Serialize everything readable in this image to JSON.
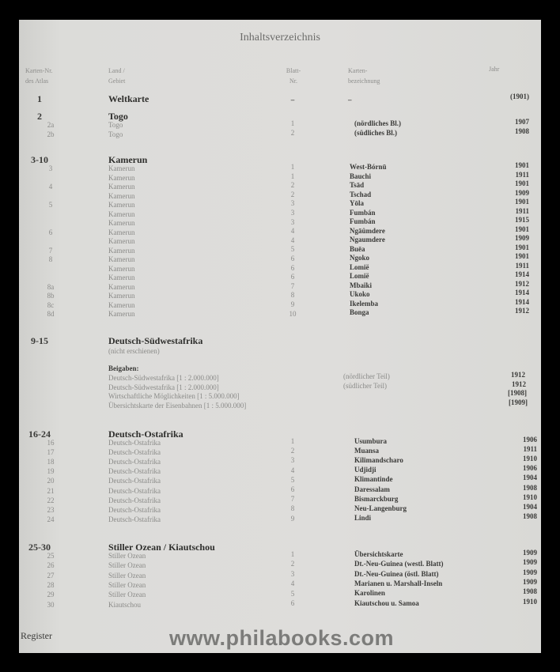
{
  "title": "Inhaltsverzeichnis",
  "headers": {
    "karten_nr": [
      "Karten-Nr.",
      "des Atlas"
    ],
    "land": [
      "Land /",
      "Gebiet"
    ],
    "blatt": [
      "Blatt-",
      "Nr."
    ],
    "bezeichnung": [
      "Karten-",
      "bezeichnung"
    ],
    "jahr": "Jahr"
  },
  "sections": [
    {
      "number": "1",
      "title": "Weltkarte",
      "blatt": "–",
      "bez": "–",
      "jahr": "(1901)",
      "rows": []
    },
    {
      "number": "2",
      "title": "Togo",
      "rows": [
        {
          "num": "2a",
          "land": "Togo",
          "blatt": "1",
          "bez": "(nördliches Bl.)",
          "jahr": "1907"
        },
        {
          "num": "2b",
          "land": "Togo",
          "blatt": "2",
          "bez": "(südliches Bl.)",
          "jahr": "1908"
        }
      ]
    },
    {
      "number": "3-10",
      "title": "Kamerun",
      "rows": [
        {
          "num": "3",
          "land": "Kamerun",
          "blatt": "1",
          "bez": "West-Bórnū",
          "jahr": "1901"
        },
        {
          "num": "",
          "land": "Kamerun",
          "blatt": "1",
          "bez": "Bauchi",
          "jahr": "1911"
        },
        {
          "num": "4",
          "land": "Kamerun",
          "blatt": "2",
          "bez": "Tsād",
          "jahr": "1901"
        },
        {
          "num": "",
          "land": "Kamerun",
          "blatt": "2",
          "bez": "Tschad",
          "jahr": "1909"
        },
        {
          "num": "5",
          "land": "Kamerun",
          "blatt": "3",
          "bez": "Yōla",
          "jahr": "1901"
        },
        {
          "num": "",
          "land": "Kamerun",
          "blatt": "3",
          "bez": "Fumbán",
          "jahr": "1911"
        },
        {
          "num": "",
          "land": "Kamerun",
          "blatt": "3",
          "bez": "Fumbán",
          "jahr": "1915"
        },
        {
          "num": "6",
          "land": "Kamerun",
          "blatt": "4",
          "bez": "Ngāûmdere",
          "jahr": "1901"
        },
        {
          "num": "",
          "land": "Kamerun",
          "blatt": "4",
          "bez": "Ngaumdere",
          "jahr": "1909"
        },
        {
          "num": "7",
          "land": "Kamerun",
          "blatt": "5",
          "bez": "Buēa",
          "jahr": "1901"
        },
        {
          "num": "8",
          "land": "Kamerun",
          "blatt": "6",
          "bez": "Ngoko",
          "jahr": "1901"
        },
        {
          "num": "",
          "land": "Kamerun",
          "blatt": "6",
          "bez": "Lomië",
          "jahr": "1911"
        },
        {
          "num": "",
          "land": "Kamerun",
          "blatt": "6",
          "bez": "Lomië",
          "jahr": "1914"
        },
        {
          "num": "8a",
          "land": "Kamerun",
          "blatt": "7",
          "bez": "Mbaïki",
          "jahr": "1912"
        },
        {
          "num": "8b",
          "land": "Kamerun",
          "blatt": "8",
          "bez": "Ukoko",
          "jahr": "1914"
        },
        {
          "num": "8c",
          "land": "Kamerun",
          "blatt": "9",
          "bez": "Ikelemba",
          "jahr": "1914"
        },
        {
          "num": "8d",
          "land": "Kamerun",
          "blatt": "10",
          "bez": "Bonga",
          "jahr": "1912"
        }
      ]
    },
    {
      "number": "9-15",
      "title": "Deutsch-Südwestafrika",
      "note": "(nicht erschienen)",
      "beigaben_label": "Beigaben:",
      "beigaben": [
        {
          "land": "Deutsch-Südwestafrika [1 : 2.000.000]",
          "bez": "(nördlicher Teil)",
          "jahr": "1912"
        },
        {
          "land": "Deutsch-Südwestafrika [1 : 2.000.000]",
          "bez": "(südlicher Teil)",
          "jahr": "1912"
        },
        {
          "land": "Wirtschaftliche Möglichkeiten [1 : 5.000.000]",
          "bez": "",
          "jahr": "[1908]"
        },
        {
          "land": "Übersichtskarte der Eisenbahnen [1 : 5.000.000]",
          "bez": "",
          "jahr": "[1909]"
        }
      ],
      "rows": []
    },
    {
      "number": "16-24",
      "title": "Deutsch-Ostafrika",
      "rows": [
        {
          "num": "16",
          "land": "Deutsch-Ostafrika",
          "blatt": "1",
          "bez": "Usumbura",
          "jahr": "1906"
        },
        {
          "num": "17",
          "land": "Deutsch-Ostafrika",
          "blatt": "2",
          "bez": "Muansa",
          "jahr": "1911"
        },
        {
          "num": "18",
          "land": "Deutsch-Ostafrika",
          "blatt": "3",
          "bez": "Kilimandscharo",
          "jahr": "1910"
        },
        {
          "num": "19",
          "land": "Deutsch-Ostafrika",
          "blatt": "4",
          "bez": "Udjidji",
          "jahr": "1906"
        },
        {
          "num": "20",
          "land": "Deutsch-Ostafrika",
          "blatt": "5",
          "bez": "Klimantinde",
          "jahr": "1904"
        },
        {
          "num": "21",
          "land": "Deutsch-Ostafrika",
          "blatt": "6",
          "bez": "Daressalam",
          "jahr": "1908"
        },
        {
          "num": "22",
          "land": "Deutsch-Ostafrika",
          "blatt": "7",
          "bez": "Bismarckburg",
          "jahr": "1910"
        },
        {
          "num": "23",
          "land": "Deutsch-Ostafrika",
          "blatt": "8",
          "bez": "Neu-Langenburg",
          "jahr": "1904"
        },
        {
          "num": "24",
          "land": "Deutsch-Ostafrika",
          "blatt": "9",
          "bez": "Lindi",
          "jahr": "1908"
        }
      ]
    },
    {
      "number": "25-30",
      "title": "Stiller Ozean / Kiautschou",
      "rows": [
        {
          "num": "25",
          "land": "Stiller Ozean",
          "blatt": "1",
          "bez": "Übersichtskarte",
          "jahr": "1909"
        },
        {
          "num": "26",
          "land": "Stiller Ozean",
          "blatt": "2",
          "bez": "Dt.-Neu-Guinea (westl. Blatt)",
          "jahr": "1909"
        },
        {
          "num": "27",
          "land": "Stiller Ozean",
          "blatt": "3",
          "bez": "Dt.-Neu-Guinea (östl. Blatt)",
          "jahr": "1909"
        },
        {
          "num": "28",
          "land": "Stiller Ozean",
          "blatt": "4",
          "bez": "Marianen u. Marshall-Inseln",
          "jahr": "1909"
        },
        {
          "num": "29",
          "land": "Stiller Ozean",
          "blatt": "5",
          "bez": "Karolinen",
          "jahr": "1908"
        },
        {
          "num": "30",
          "land": "Kiautschou",
          "blatt": "6",
          "bez": "Kiautschou u. Samoa",
          "jahr": "1910"
        }
      ]
    }
  ],
  "register": "Register",
  "watermark": "www.philabooks.com"
}
